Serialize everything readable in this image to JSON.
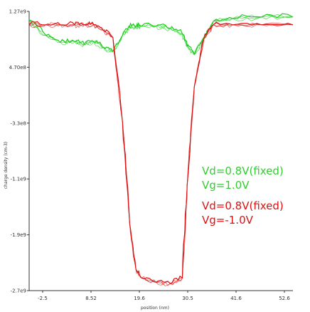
{
  "chart_data": {
    "type": "line",
    "xlabel": "position (nm)",
    "ylabel": "charge density (cm-3)",
    "x_ticks": [
      "-2.5",
      "8.52",
      "19.6",
      "30.5",
      "41.6",
      "52.6"
    ],
    "y_ticks": [
      "1.27e9",
      "4.70e8",
      "-3.3e8",
      "-1.1e9",
      "-1.9e9",
      "-2.7e9"
    ],
    "xlim": [
      -2.5,
      52.6
    ],
    "ylim": [
      -2700000000.0,
      1270000000.0
    ],
    "x": [
      -2.5,
      1,
      4,
      7,
      9,
      11,
      13,
      15,
      17,
      18.5,
      19.8,
      21,
      24,
      27,
      29.5,
      30.5,
      32,
      34,
      36,
      40,
      46,
      52.6
    ],
    "series": [
      {
        "name": "Vd=0.8V(fixed) Vg=1.0V",
        "color": "#22cc22",
        "values": [
          1150000000.0,
          930000000.0,
          830000000.0,
          840000000.0,
          800000000.0,
          840000000.0,
          760000000.0,
          700000000.0,
          930000000.0,
          1050000000.0,
          1050000000.0,
          1060000000.0,
          1060000000.0,
          1030000000.0,
          950000000.0,
          770000000.0,
          660000000.0,
          900000000.0,
          1130000000.0,
          1170000000.0,
          1190000000.0,
          1190000000.0
        ]
      },
      {
        "name": "Vd=0.8V(fixed) Vg=-1.0V",
        "color": "#dd1111",
        "values": [
          1080000000.0,
          1080000000.0,
          1080000000.0,
          1080000000.0,
          1080000000.0,
          1080000000.0,
          1000000000.0,
          900000000.0,
          -300000000.0,
          -1750000000.0,
          -2400000000.0,
          -2520000000.0,
          -2580000000.0,
          -2600000000.0,
          -2520000000.0,
          -1200000000.0,
          200000000.0,
          880000000.0,
          1080000000.0,
          1080000000.0,
          1080000000.0,
          1080000000.0
        ]
      }
    ],
    "legend": [
      "Vd=0.8V(fixed)",
      "Vg=1.0V",
      "Vd=0.8V(fixed)",
      "Vg=-1.0V"
    ],
    "legend_placement": "right",
    "grid": false
  }
}
